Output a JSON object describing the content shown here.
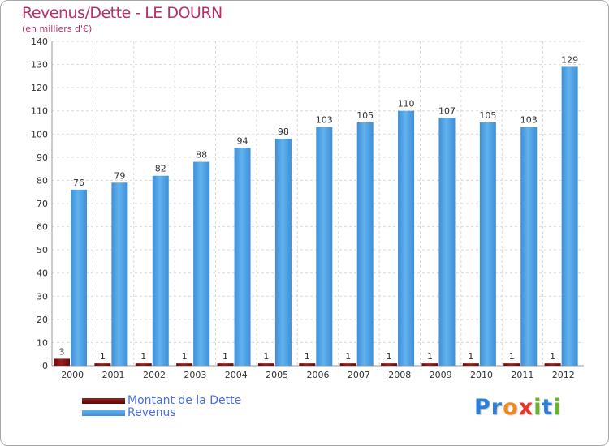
{
  "title": "Revenus/Dette - LE DOURN",
  "subtitle": "(en milliers d'€)",
  "logo": {
    "text": "Proxiti",
    "letters": [
      {
        "char": "P",
        "color": "#2b7fd6"
      },
      {
        "char": "r",
        "color": "#2b7fd6"
      },
      {
        "char": "o",
        "color": "#f08a1c"
      },
      {
        "char": "x",
        "color": "#e8362a"
      },
      {
        "char": "i",
        "color": "#6ab42d"
      },
      {
        "char": "t",
        "color": "#2b7fd6"
      },
      {
        "char": "i",
        "color": "#6ab42d"
      }
    ]
  },
  "chart_data": {
    "type": "bar",
    "title": "Revenus/Dette - LE DOURN",
    "subtitle": "(en milliers d'€)",
    "xlabel": "",
    "ylabel": "",
    "ylim": [
      0,
      140
    ],
    "yticks": [
      0,
      10,
      20,
      30,
      40,
      50,
      60,
      70,
      80,
      90,
      100,
      110,
      120,
      130,
      140
    ],
    "grid": true,
    "legend_position": "bottom-left",
    "categories": [
      "2000",
      "2001",
      "2002",
      "2003",
      "2004",
      "2005",
      "2006",
      "2007",
      "2008",
      "2009",
      "2010",
      "2011",
      "2012"
    ],
    "series": [
      {
        "name": "Montant de la Dette",
        "color": "#7a0d0d",
        "values": [
          3,
          1,
          1,
          1,
          1,
          1,
          1,
          1,
          1,
          1,
          1,
          1,
          1
        ]
      },
      {
        "name": "Revenus",
        "color": "#4fa3e3",
        "values": [
          76,
          79,
          82,
          88,
          94,
          98,
          103,
          105,
          110,
          107,
          105,
          103,
          129
        ]
      }
    ]
  }
}
